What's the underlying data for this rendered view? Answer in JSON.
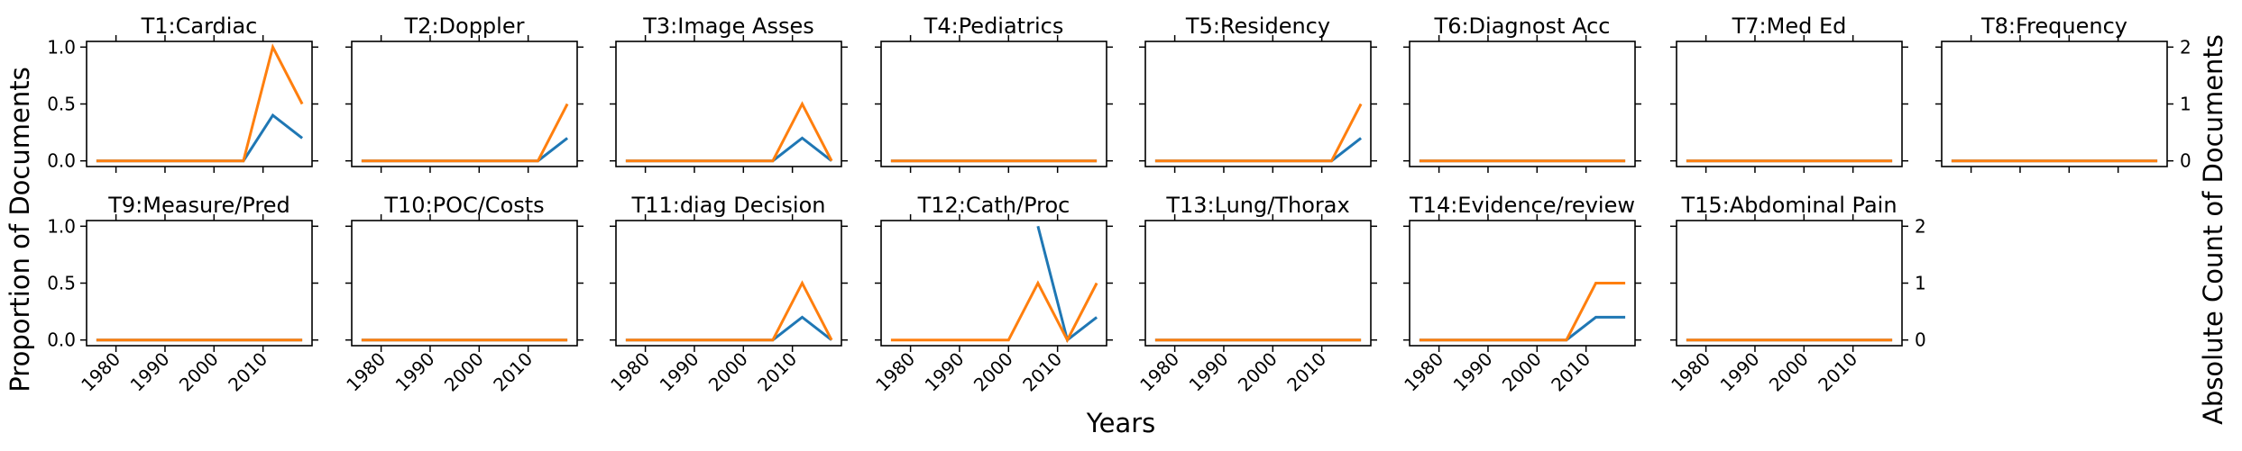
{
  "figure": {
    "ylabel_left": "Proportion of Documents",
    "ylabel_right": "Absolute Count of Documents",
    "xlabel": "Years"
  },
  "colors": {
    "proportion": "#1f77b4",
    "count": "#ff7f0e"
  },
  "chart_data": [
    {
      "type": "line",
      "title": "T1:Cardiac",
      "x": [
        1976,
        2006,
        2012,
        2018
      ],
      "series": [
        {
          "axis": "left",
          "values": [
            0,
            0,
            0.4,
            0.2
          ]
        },
        {
          "axis": "right",
          "values": [
            0,
            0,
            2,
            1
          ]
        }
      ]
    },
    {
      "type": "line",
      "title": "T2:Doppler",
      "x": [
        1976,
        2012,
        2018
      ],
      "series": [
        {
          "axis": "left",
          "values": [
            0,
            0,
            0.2
          ]
        },
        {
          "axis": "right",
          "values": [
            0,
            0,
            1
          ]
        }
      ]
    },
    {
      "type": "line",
      "title": "T3:Image Asses",
      "x": [
        1976,
        2006,
        2012,
        2018
      ],
      "series": [
        {
          "axis": "left",
          "values": [
            0,
            0,
            0.2,
            0
          ]
        },
        {
          "axis": "right",
          "values": [
            0,
            0,
            1,
            0
          ]
        }
      ]
    },
    {
      "type": "line",
      "title": "T4:Pediatrics",
      "x": [
        1976,
        2018
      ],
      "series": [
        {
          "axis": "left",
          "values": [
            0,
            0
          ]
        },
        {
          "axis": "right",
          "values": [
            0,
            0
          ]
        }
      ]
    },
    {
      "type": "line",
      "title": "T5:Residency",
      "x": [
        1976,
        2012,
        2018
      ],
      "series": [
        {
          "axis": "left",
          "values": [
            0,
            0,
            0.2
          ]
        },
        {
          "axis": "right",
          "values": [
            0,
            0,
            1
          ]
        }
      ]
    },
    {
      "type": "line",
      "title": "T6:Diagnost Acc",
      "x": [
        1976,
        2018
      ],
      "series": [
        {
          "axis": "left",
          "values": [
            0,
            0
          ]
        },
        {
          "axis": "right",
          "values": [
            0,
            0
          ]
        }
      ]
    },
    {
      "type": "line",
      "title": "T7:Med Ed",
      "x": [
        1976,
        2018
      ],
      "series": [
        {
          "axis": "left",
          "values": [
            0,
            0
          ]
        },
        {
          "axis": "right",
          "values": [
            0,
            0
          ]
        }
      ]
    },
    {
      "type": "line",
      "title": "T8:Frequency",
      "x": [
        1976,
        2018
      ],
      "series": [
        {
          "axis": "left",
          "values": [
            0,
            0
          ]
        },
        {
          "axis": "right",
          "values": [
            0,
            0
          ]
        }
      ]
    },
    {
      "type": "line",
      "title": "T9:Measure/Pred",
      "x": [
        1976,
        2018
      ],
      "series": [
        {
          "axis": "left",
          "values": [
            0,
            0
          ]
        },
        {
          "axis": "right",
          "values": [
            0,
            0
          ]
        }
      ]
    },
    {
      "type": "line",
      "title": "T10:POC/Costs",
      "x": [
        1976,
        2018
      ],
      "series": [
        {
          "axis": "left",
          "values": [
            0,
            0
          ]
        },
        {
          "axis": "right",
          "values": [
            0,
            0
          ]
        }
      ]
    },
    {
      "type": "line",
      "title": "T11:diag Decision",
      "x": [
        1976,
        2006,
        2012,
        2018
      ],
      "series": [
        {
          "axis": "left",
          "values": [
            0,
            0,
            0.2,
            0
          ]
        },
        {
          "axis": "right",
          "values": [
            0,
            0,
            1,
            0
          ]
        }
      ]
    },
    {
      "type": "line",
      "title": "T12:Cath/Proc",
      "x": [
        1976,
        2000,
        2006,
        2012,
        2018
      ],
      "series": [
        {
          "axis": "left",
          "x": [
            2006,
            2012,
            2018
          ],
          "values": [
            1.0,
            0,
            0.2
          ]
        },
        {
          "axis": "right",
          "values": [
            0,
            0,
            1,
            0,
            1
          ]
        }
      ]
    },
    {
      "type": "line",
      "title": "T13:Lung/Thorax",
      "x": [
        1976,
        2018
      ],
      "series": [
        {
          "axis": "left",
          "values": [
            0,
            0
          ]
        },
        {
          "axis": "right",
          "values": [
            0,
            0
          ]
        }
      ]
    },
    {
      "type": "line",
      "title": "T14:Evidence/review",
      "x": [
        1976,
        2006,
        2012,
        2018
      ],
      "series": [
        {
          "axis": "left",
          "values": [
            0,
            0,
            0.2,
            0.2
          ]
        },
        {
          "axis": "right",
          "values": [
            0,
            0,
            1,
            1
          ]
        }
      ]
    },
    {
      "type": "line",
      "title": "T15:Abdominal Pain",
      "x": [
        1976,
        2018
      ],
      "series": [
        {
          "axis": "left",
          "values": [
            0,
            0
          ]
        },
        {
          "axis": "right",
          "values": [
            0,
            0
          ]
        }
      ]
    }
  ],
  "axes": {
    "xlim": [
      1974,
      2020
    ],
    "xticks": [
      1980,
      1990,
      2000,
      2010
    ],
    "xtick_labels": [
      "1980",
      "1990",
      "2000",
      "2010"
    ],
    "ylim_left": [
      -0.05,
      1.05
    ],
    "yticks_left": [
      0,
      0.5,
      1
    ],
    "ytick_labels_left": [
      "0.0",
      "0.5",
      "1.0"
    ],
    "ylim_right": [
      -0.1,
      2.1
    ],
    "yticks_right": [
      0,
      1,
      2
    ],
    "ytick_labels_right": [
      "0",
      "1",
      "2"
    ]
  }
}
